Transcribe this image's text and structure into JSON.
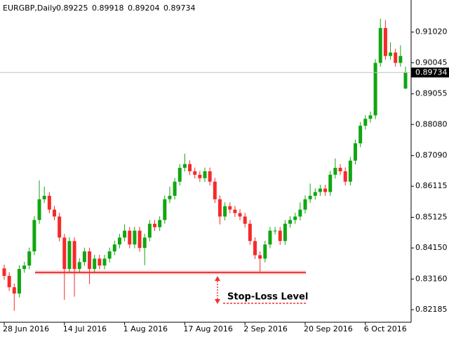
{
  "chart_data": {
    "type": "candlestick",
    "header": {
      "symbol": "EURGBP,Daily",
      "open": 0.89225,
      "high": 0.89918,
      "low": 0.89204,
      "close": 0.89734
    },
    "categories": [
      "28 Jun 2016",
      null,
      null,
      null,
      null,
      null,
      null,
      null,
      null,
      null,
      null,
      null,
      "14 Jul 2016",
      null,
      null,
      null,
      null,
      null,
      null,
      null,
      null,
      null,
      null,
      null,
      "1 Aug 2016",
      null,
      null,
      null,
      null,
      null,
      null,
      null,
      null,
      null,
      null,
      null,
      "17 Aug 2016",
      null,
      null,
      null,
      null,
      null,
      null,
      null,
      null,
      null,
      null,
      null,
      "2 Sep 2016",
      null,
      null,
      null,
      null,
      null,
      null,
      null,
      null,
      null,
      null,
      null,
      "20 Sep 2016",
      null,
      null,
      null,
      null,
      null,
      null,
      null,
      null,
      null,
      null,
      null,
      "6 Oct 2016",
      null,
      null,
      null,
      null,
      null,
      null,
      null,
      null
    ],
    "open": [
      0.835,
      0.8326,
      0.829,
      0.827,
      0.8348,
      0.8359,
      0.8404,
      0.8504,
      0.857,
      0.8581,
      0.8537,
      0.8515,
      0.8448,
      0.8348,
      0.8437,
      0.8348,
      0.837,
      0.8404,
      0.8348,
      0.8381,
      0.8359,
      0.8381,
      0.8404,
      0.8426,
      0.8448,
      0.847,
      0.8426,
      0.847,
      0.8415,
      0.8448,
      0.8492,
      0.8481,
      0.8504,
      0.857,
      0.8581,
      0.8626,
      0.867,
      0.8682,
      0.8659,
      0.8648,
      0.8637,
      0.8659,
      0.8626,
      0.857,
      0.8515,
      0.8548,
      0.8537,
      0.8526,
      0.8515,
      0.8492,
      0.8437,
      0.8392,
      0.8381,
      0.8426,
      0.847,
      0.847,
      0.8437,
      0.8492,
      0.8504,
      0.8515,
      0.8537,
      0.857,
      0.8581,
      0.8593,
      0.8604,
      0.8593,
      0.8648,
      0.867,
      0.8659,
      0.8626,
      0.8693,
      0.8748,
      0.8804,
      0.8826,
      0.8837,
      0.9004,
      0.9115,
      0.9026,
      0.9037,
      0.9004,
      0.89225
    ],
    "high": [
      0.8362,
      0.8338,
      0.8302,
      0.836,
      0.8371,
      0.8416,
      0.8516,
      0.863,
      0.861,
      0.8593,
      0.8549,
      0.8527,
      0.846,
      0.8449,
      0.8449,
      0.8382,
      0.8416,
      0.8416,
      0.8393,
      0.8393,
      0.8393,
      0.8416,
      0.8438,
      0.846,
      0.849,
      0.8482,
      0.8482,
      0.8482,
      0.846,
      0.8504,
      0.8504,
      0.8516,
      0.8582,
      0.861,
      0.8638,
      0.8682,
      0.8715,
      0.8694,
      0.8671,
      0.866,
      0.8671,
      0.8671,
      0.8638,
      0.8582,
      0.856,
      0.856,
      0.8549,
      0.8538,
      0.8527,
      0.8504,
      0.8449,
      0.8404,
      0.8438,
      0.8482,
      0.8482,
      0.8482,
      0.8504,
      0.8516,
      0.8527,
      0.856,
      0.8582,
      0.862,
      0.8605,
      0.8616,
      0.8616,
      0.866,
      0.87,
      0.8682,
      0.8671,
      0.8705,
      0.876,
      0.8816,
      0.8838,
      0.8849,
      0.9016,
      0.9145,
      0.914,
      0.907,
      0.9049,
      0.906,
      0.89918
    ],
    "low": [
      0.8314,
      0.8278,
      0.8215,
      0.8258,
      0.8336,
      0.8347,
      0.8392,
      0.8492,
      0.8558,
      0.8525,
      0.8503,
      0.8436,
      0.825,
      0.8336,
      0.826,
      0.8336,
      0.8358,
      0.83,
      0.8336,
      0.8347,
      0.8347,
      0.8369,
      0.8392,
      0.8414,
      0.8436,
      0.8414,
      0.8414,
      0.8403,
      0.836,
      0.8436,
      0.8469,
      0.8469,
      0.8492,
      0.8558,
      0.8569,
      0.8614,
      0.8658,
      0.8647,
      0.8636,
      0.8625,
      0.8625,
      0.8614,
      0.8558,
      0.849,
      0.8503,
      0.8525,
      0.8514,
      0.8503,
      0.848,
      0.8425,
      0.838,
      0.834,
      0.8369,
      0.8414,
      0.8458,
      0.8425,
      0.8425,
      0.848,
      0.8492,
      0.8503,
      0.8525,
      0.8558,
      0.8569,
      0.8581,
      0.8581,
      0.8581,
      0.8636,
      0.8647,
      0.8614,
      0.8614,
      0.8681,
      0.8736,
      0.8792,
      0.8814,
      0.8825,
      0.8992,
      0.9014,
      0.9014,
      0.8992,
      0.8992,
      0.89204
    ],
    "close": [
      0.8326,
      0.829,
      0.827,
      0.8348,
      0.8359,
      0.8404,
      0.8504,
      0.857,
      0.8581,
      0.8537,
      0.8515,
      0.8448,
      0.8348,
      0.8437,
      0.8348,
      0.837,
      0.8404,
      0.8348,
      0.8381,
      0.8359,
      0.8381,
      0.8404,
      0.8426,
      0.8448,
      0.847,
      0.8426,
      0.847,
      0.8415,
      0.8448,
      0.8492,
      0.8481,
      0.8504,
      0.857,
      0.8581,
      0.8626,
      0.867,
      0.8682,
      0.8659,
      0.8648,
      0.8637,
      0.8659,
      0.8626,
      0.857,
      0.8515,
      0.8548,
      0.8537,
      0.8526,
      0.8515,
      0.8492,
      0.8437,
      0.8392,
      0.8381,
      0.8426,
      0.847,
      0.847,
      0.8437,
      0.8492,
      0.8504,
      0.8515,
      0.8537,
      0.857,
      0.8581,
      0.8593,
      0.8604,
      0.8593,
      0.8648,
      0.867,
      0.8659,
      0.8626,
      0.8693,
      0.8748,
      0.8804,
      0.8826,
      0.8837,
      0.9004,
      0.9115,
      0.9026,
      0.9037,
      0.9004,
      0.9026,
      0.89734
    ],
    "up_color": "#11a611",
    "down_color": "#f52a2a",
    "ylim": [
      0.81785,
      0.92042
    ],
    "yticks": [
      {
        "value": 0.9102,
        "label": "0.91020"
      },
      {
        "value": 0.90045,
        "label": "0.90045"
      },
      {
        "value": 0.89055,
        "label": "0.89055"
      },
      {
        "value": 0.8808,
        "label": "0.88080"
      },
      {
        "value": 0.8709,
        "label": "0.87090"
      },
      {
        "value": 0.86115,
        "label": "0.86115"
      },
      {
        "value": 0.85125,
        "label": "0.85125"
      },
      {
        "value": 0.8415,
        "label": "0.84150"
      },
      {
        "value": 0.8316,
        "label": "0.83160"
      },
      {
        "value": 0.82185,
        "label": "0.82185"
      }
    ],
    "stop_loss": {
      "label": "Stop-Loss Level",
      "value": 0.8337,
      "color": "#f03030"
    }
  }
}
